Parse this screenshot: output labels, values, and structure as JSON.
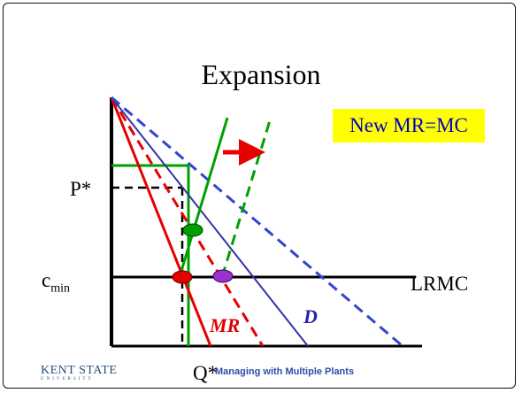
{
  "slide": {
    "title": "Expansion",
    "callout": "New MR=MC",
    "labels": {
      "p_star": "P*",
      "c": "c",
      "c_sub": "min",
      "lrmc": "LRMC",
      "q_star": "Q*",
      "mr": "MR",
      "d": "D"
    },
    "footer": "Managing with Multiple Plants",
    "logo": {
      "main": "KENT STATE",
      "sub": "UNIVERSITY"
    }
  },
  "colors": {
    "red": "#e60000",
    "blue": "#3333aa",
    "dashed_blue": "#3344cc",
    "green": "#00a000",
    "purple": "#9933cc",
    "callout_bg": "#ffff00",
    "callout_text": "#0000cc"
  }
}
